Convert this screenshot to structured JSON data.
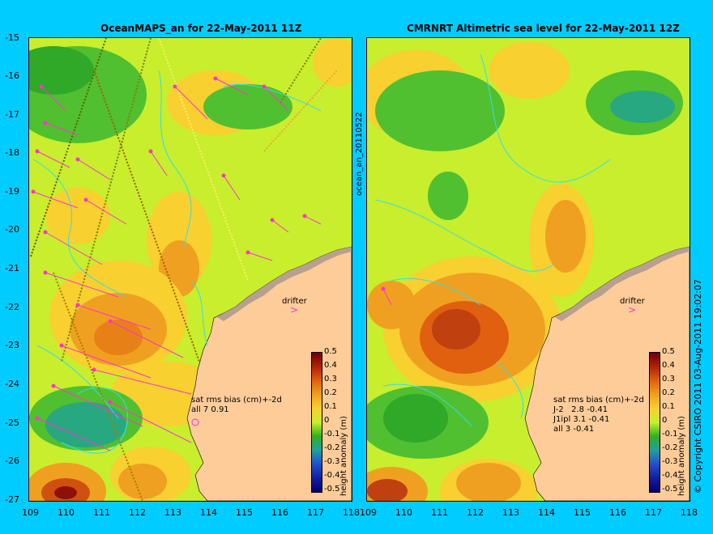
{
  "left_panel": {
    "title": "OceanMAPS_an for 22-May-2011 11Z",
    "stats_title": "sat rms bias (cm)+-2d",
    "stats_lines": [
      "all 7 0.91"
    ],
    "drifter_label": "drifter"
  },
  "right_panel": {
    "title": "CMRNRT Altimetric sea level  for 22-May-2011 12Z",
    "stats_title": "sat rms bias (cm)+-2d",
    "stats_lines": [
      "J-2   2.8 -0.41",
      "J1ipl 3.1 -0.41",
      "all 3 -0.41"
    ],
    "drifter_label": "drifter"
  },
  "file_label": "ocean_an_20110522",
  "copyright": "© Copyright CSIRO 2011  03-Aug-2011 19:02:07",
  "y_ticks": [
    "-15",
    "-16",
    "-17",
    "-18",
    "-19",
    "-20",
    "-21",
    "-22",
    "-23",
    "-24",
    "-25",
    "-26",
    "-27"
  ],
  "x_ticks": [
    "109",
    "110",
    "111",
    "112",
    "113",
    "114",
    "115",
    "116",
    "117",
    "118"
  ],
  "colorbar": {
    "title": "height anomaly (m)",
    "labels": [
      "0.5",
      "0.4",
      "0.3",
      "0.2",
      "0.1",
      "0",
      "-0.1",
      "-0.2",
      "-0.3",
      "-0.4",
      "-0.5"
    ]
  },
  "colors": {
    "background": "#00ccff",
    "land": "#fdcc99",
    "vector": "#ff33cc",
    "contour": "#33ddee"
  }
}
